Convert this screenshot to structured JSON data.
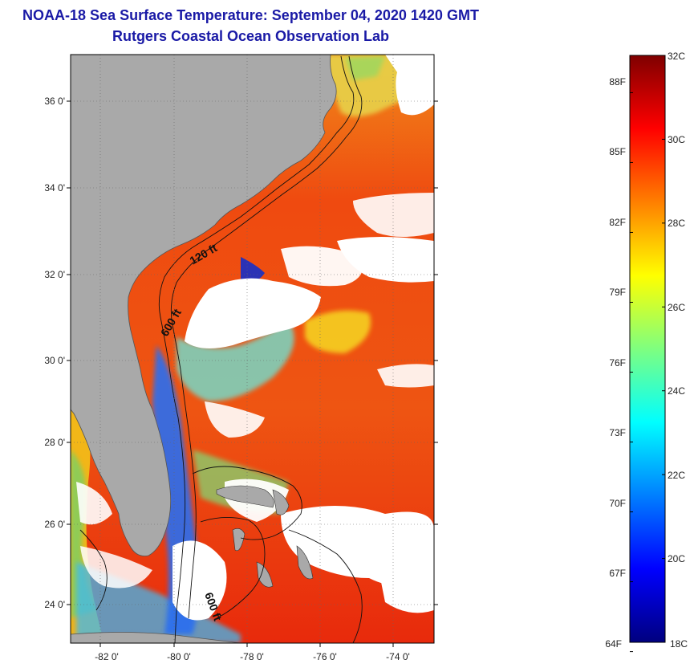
{
  "header": {
    "title": "NOAA-18 Sea Surface Temperature:  September 04, 2020 1420 GMT",
    "subtitle": "Rutgers Coastal Ocean Observation Lab"
  },
  "map": {
    "latitude_labels": [
      "36 0'",
      "34 0'",
      "32 0'",
      "30 0'",
      "28 0'",
      "26 0'",
      "24 0'"
    ],
    "longitude_labels": [
      "-82 0'",
      "-80 0'",
      "-78 0'",
      "-76 0'",
      "-74 0'"
    ],
    "isobath_labels": [
      "120 ft",
      "600 ft",
      "600 ft"
    ],
    "colors": {
      "land": "#a9a9a9",
      "cloud": "#ffffff",
      "frame": "#000000"
    }
  },
  "colorbar": {
    "celsius_labels": [
      "32C",
      "30C",
      "28C",
      "26C",
      "24C",
      "22C",
      "20C",
      "18C"
    ],
    "fahrenheit_labels": [
      "88F",
      "85F",
      "82F",
      "79F",
      "76F",
      "73F",
      "70F",
      "67F",
      "64F"
    ],
    "range_c": [
      18,
      32
    ],
    "colors": [
      "#00007f",
      "#0000ff",
      "#007fff",
      "#00ffff",
      "#7fff7f",
      "#ffff00",
      "#ff7f00",
      "#ff0000",
      "#7f0000"
    ]
  }
}
